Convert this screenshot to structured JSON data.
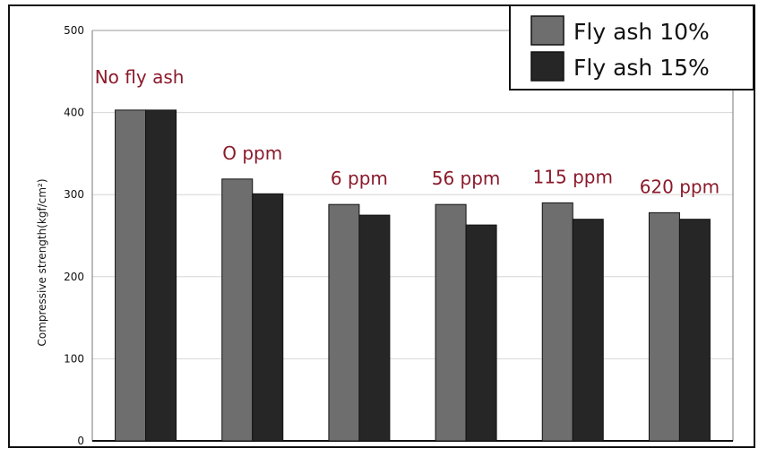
{
  "chart_data": {
    "type": "bar",
    "title": "",
    "xlabel": "",
    "ylabel": "Compressive strength(kgf/cm²)",
    "ylim": [
      0,
      500
    ],
    "yticks": [
      0,
      100,
      200,
      300,
      400,
      500
    ],
    "grid": true,
    "legend_position": "top-right",
    "categories": [
      "No fly ash",
      "O ppm",
      "6 ppm",
      "56 ppm",
      "115 ppm",
      "620 ppm"
    ],
    "series": [
      {
        "name": "Fly ash 10%",
        "color": "#6e6e6e",
        "values": [
          403,
          319,
          288,
          288,
          290,
          278
        ]
      },
      {
        "name": "Fly ash 15%",
        "color": "#262626",
        "values": [
          403,
          301,
          275,
          263,
          270,
          270
        ]
      }
    ]
  }
}
